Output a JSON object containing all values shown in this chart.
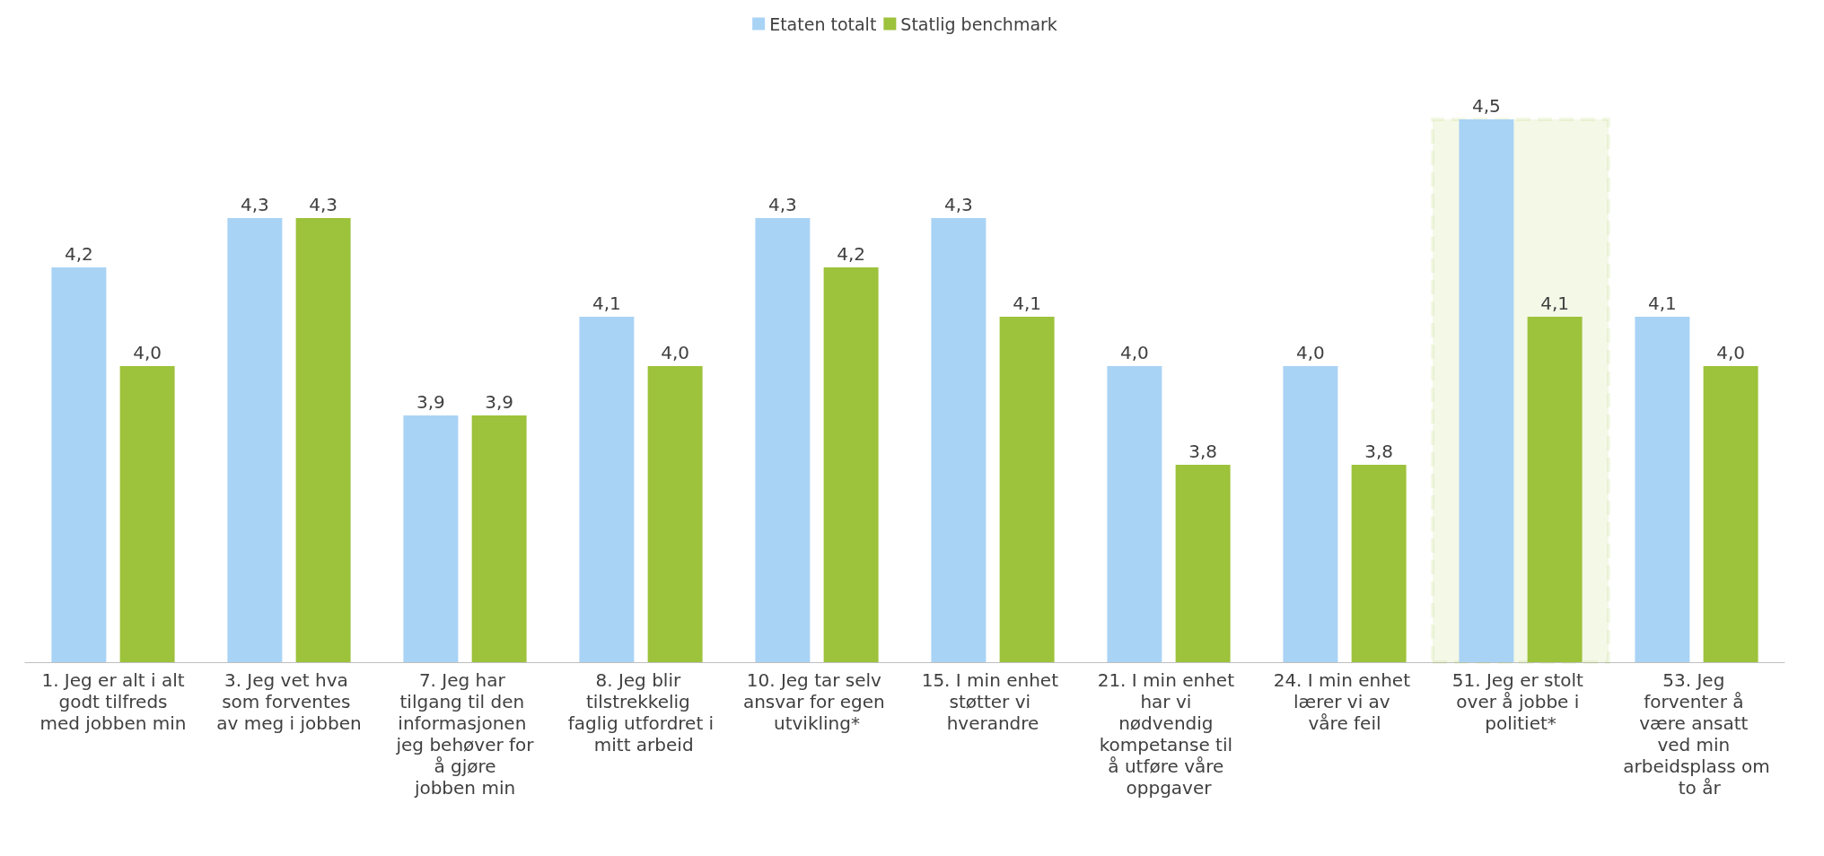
{
  "chart_data": {
    "type": "bar",
    "categories": [
      "1. Jeg er alt i alt godt tilfreds med jobben min",
      "3. Jeg vet hva som forventes av meg i jobben",
      "7. Jeg har tilgang til den informasjonen jeg behøver for å gjøre jobben min",
      "8. Jeg blir tilstrekkelig faglig utfordret i mitt arbeid",
      "10. Jeg tar selv ansvar for egen utvikling*",
      "15. I min enhet støtter vi hverandre",
      "21. I min enhet har vi nødvendig kompetanse til å utføre våre oppgaver",
      "24. I min enhet lærer vi av våre feil",
      "51. Jeg er stolt over å jobbe i politiet*",
      "53. Jeg forventer å være ansatt ved min arbeidsplass om to år"
    ],
    "series": [
      {
        "name": "Etaten totalt",
        "color": "#a9d3f5",
        "values": [
          4.2,
          4.3,
          3.9,
          4.1,
          4.3,
          4.3,
          4.0,
          4.0,
          4.5,
          4.1
        ],
        "value_labels": [
          "4,2",
          "4,3",
          "3,9",
          "4,1",
          "4,3",
          "4,3",
          "4,0",
          "4,0",
          "4,5",
          "4,1"
        ]
      },
      {
        "name": "Statlig benchmark",
        "color": "#9dc23b",
        "values": [
          4.0,
          4.3,
          3.9,
          4.0,
          4.2,
          4.1,
          3.8,
          3.8,
          4.1,
          4.0
        ],
        "value_labels": [
          "4,0",
          "4,3",
          "3,9",
          "4,0",
          "4,2",
          "4,1",
          "3,8",
          "3,8",
          "4,1",
          "4,0"
        ]
      }
    ],
    "ylim": [
      3.4,
      4.5
    ],
    "tick_labels": "x",
    "grid": false,
    "legend": "top",
    "bands": [
      {
        "axis": "x",
        "from": "51. Jeg er stolt over å jobbe i politiet*",
        "to": "51. Jeg er stolt over å jobbe i politiet*",
        "color": "#9dc23b"
      }
    ]
  }
}
